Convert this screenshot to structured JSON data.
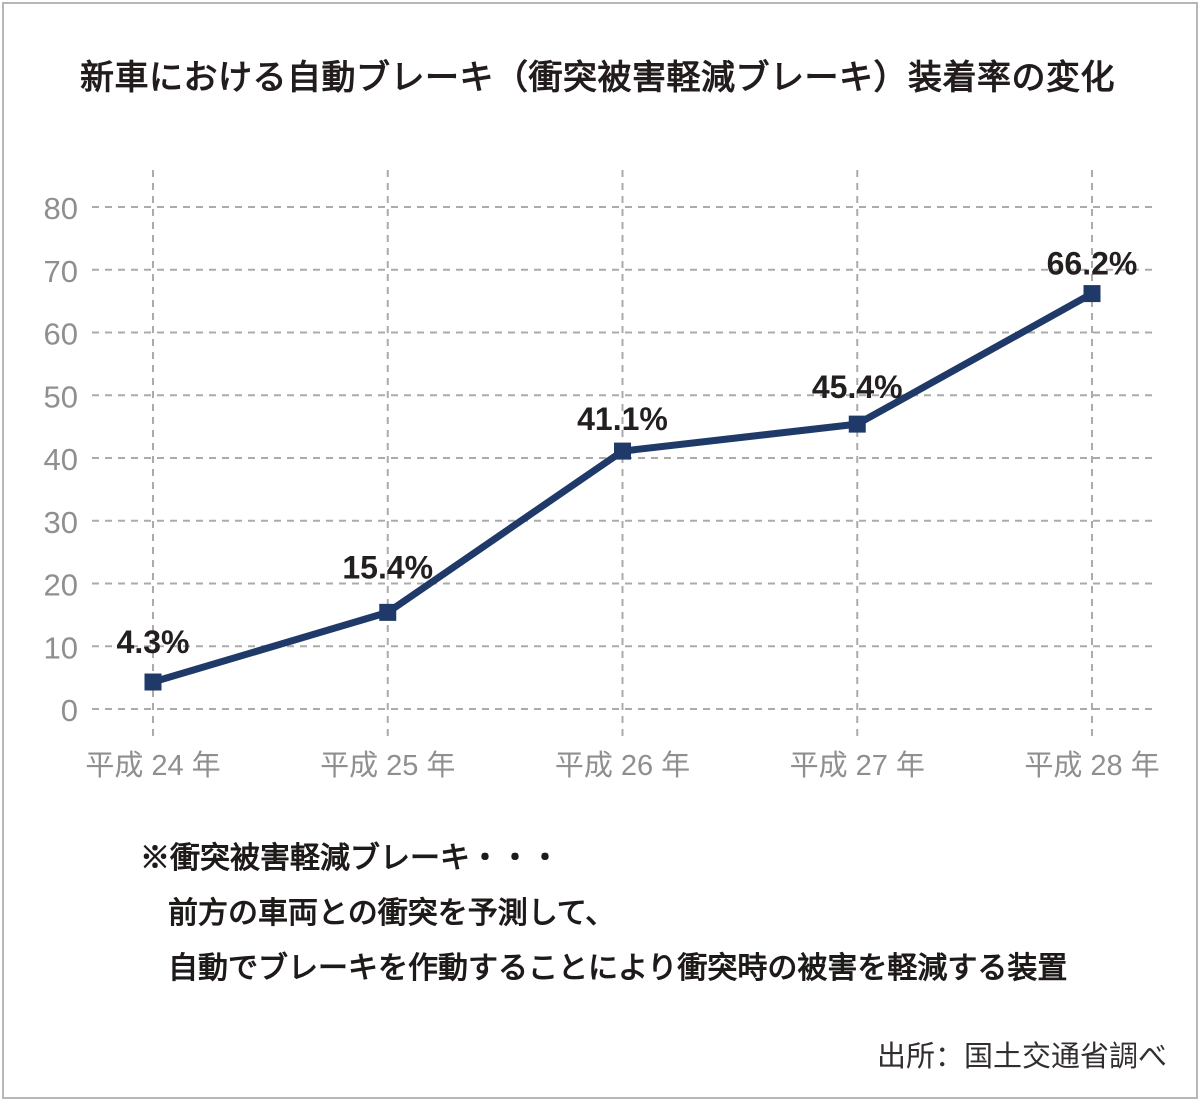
{
  "title": "新車における自動ブレーキ（衝突被害軽減ブレーキ）装着率の変化",
  "chart_data": {
    "type": "line",
    "title": "新車における自動ブレーキ（衝突被害軽減ブレーキ）装着率の変化",
    "categories": [
      "平成 24 年",
      "平成 25 年",
      "平成 26 年",
      "平成 27 年",
      "平成 28 年"
    ],
    "values": [
      4.3,
      15.4,
      41.1,
      45.4,
      66.2
    ],
    "point_labels": [
      "4.3%",
      "15.4%",
      "41.1%",
      "45.4%",
      "66.2%"
    ],
    "unit": "%",
    "xlabel": "",
    "ylabel": "",
    "ylim": [
      0,
      80
    ],
    "yticks": [
      0,
      10,
      20,
      30,
      40,
      50,
      60,
      70,
      80
    ],
    "grid": "dashed-both",
    "legend": "none",
    "marker": "square"
  },
  "footnote": {
    "line1": "※衝突被害軽減ブレーキ・・・",
    "line2": "前方の車両との衝突を予測して、",
    "line3": "自動でブレーキを作動することにより衝突時の被害を軽減する装置"
  },
  "source": "出所：国土交通省調べ",
  "colors": {
    "line": "#1f3a68",
    "marker": "#1f3a68",
    "grid": "#ababab",
    "axis_label": "#8f8f8f",
    "data_label": "#231f1f",
    "title_text": "#221c1d",
    "footnote_text": "#1f1a1a",
    "source_text": "#332e2e",
    "frame_border": "#b7b7b7",
    "background": "#ffffff"
  }
}
